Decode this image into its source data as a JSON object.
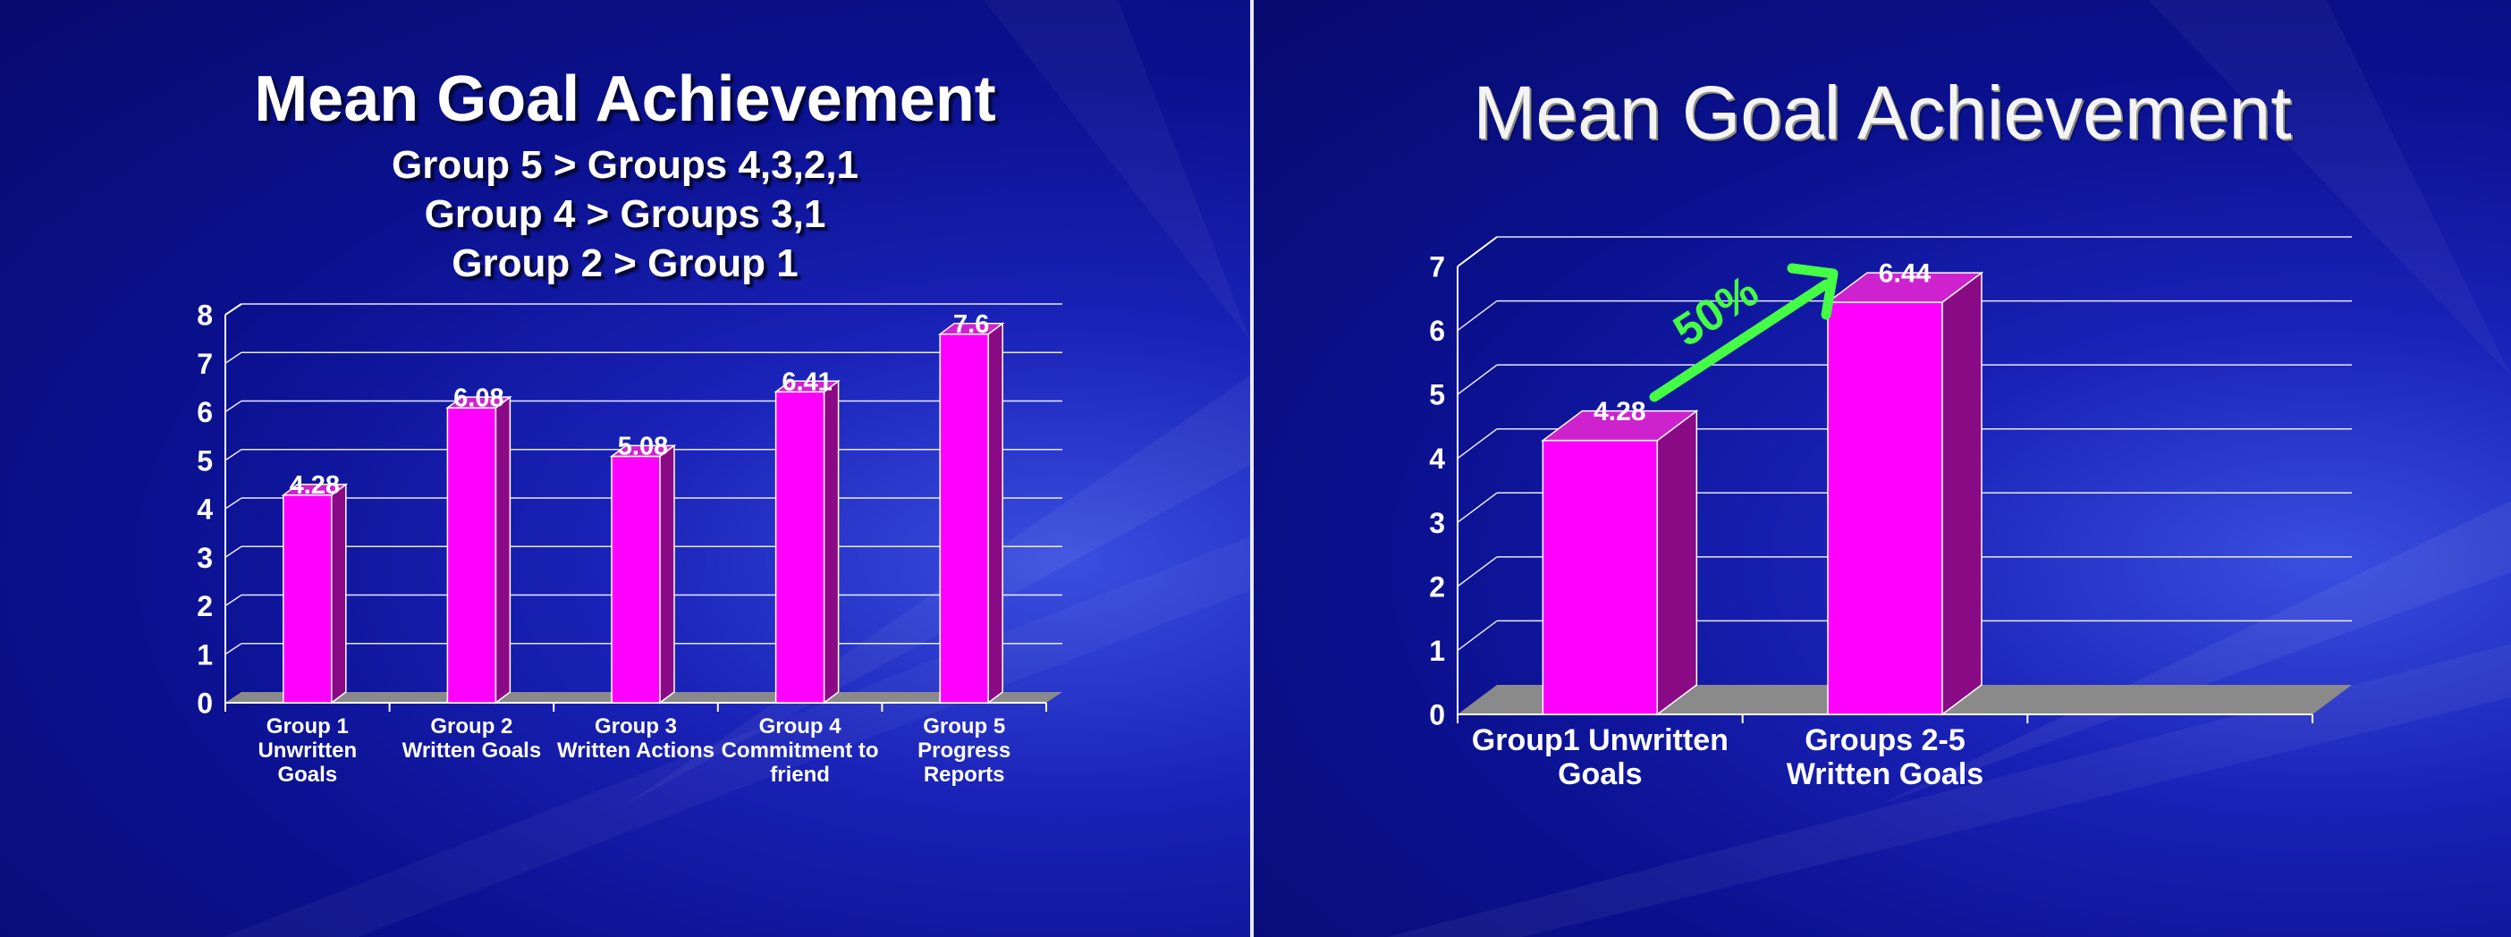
{
  "colors": {
    "bar_front": "#ff00ff",
    "bar_side": "#8a0a86",
    "bar_top": "#cf22cf",
    "grid": "#ffffff",
    "floor": "#8a8a8a",
    "arrow": "#44ff44"
  },
  "left_slide": {
    "title": "Mean Goal Achievement",
    "subtitles": [
      "Group 5 > Groups 4,3,2,1",
      "Group 4 > Groups 3,1",
      "Group 2 > Group 1"
    ]
  },
  "right_slide": {
    "title": "Mean Goal Achievement",
    "annotation": "50%"
  },
  "chart_data": [
    {
      "type": "bar",
      "title": "Mean Goal Achievement",
      "categories": [
        [
          "Group 1",
          "Unwritten",
          "Goals"
        ],
        [
          "Group 2",
          "Written Goals"
        ],
        [
          "Group 3",
          "Written Actions"
        ],
        [
          "Group 4",
          "Commitment to",
          "friend"
        ],
        [
          "Group 5",
          "Progress",
          "Reports"
        ]
      ],
      "values": [
        4.28,
        6.08,
        5.08,
        6.41,
        7.6
      ],
      "value_labels": [
        "4.28",
        "6.08",
        "5.08",
        "6.41",
        "7.6"
      ],
      "yticks": [
        "0",
        "1",
        "2",
        "3",
        "4",
        "5",
        "6",
        "7",
        "8"
      ],
      "ylim": [
        0,
        8
      ],
      "grid": true,
      "style": "3d"
    },
    {
      "type": "bar",
      "title": "Mean Goal Achievement",
      "categories": [
        [
          "Group1 Unwritten",
          "Goals"
        ],
        [
          "Groups 2-5",
          "Written Goals"
        ]
      ],
      "values": [
        4.28,
        6.44
      ],
      "value_labels": [
        "4.28",
        "6.44"
      ],
      "yticks": [
        "0",
        "1",
        "2",
        "3",
        "4",
        "5",
        "6",
        "7"
      ],
      "ylim": [
        0,
        7
      ],
      "grid": true,
      "style": "3d"
    }
  ]
}
